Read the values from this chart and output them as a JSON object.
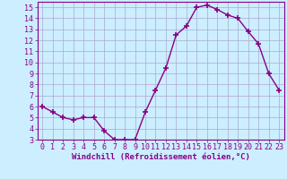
{
  "x": [
    0,
    1,
    2,
    3,
    4,
    5,
    6,
    7,
    8,
    9,
    10,
    11,
    12,
    13,
    14,
    15,
    16,
    17,
    18,
    19,
    20,
    21,
    22,
    23
  ],
  "y": [
    6.0,
    5.5,
    5.0,
    4.8,
    5.0,
    5.0,
    3.8,
    3.0,
    3.0,
    3.0,
    5.5,
    7.5,
    9.5,
    12.5,
    13.3,
    15.0,
    15.2,
    14.8,
    14.3,
    14.0,
    12.8,
    11.7,
    9.0,
    7.5
  ],
  "line_color": "#880088",
  "marker": "+",
  "marker_size": 4,
  "marker_linewidth": 1.2,
  "background_color": "#cceeff",
  "grid_color": "#aaaacc",
  "xlabel": "Windchill (Refroidissement éolien,°C)",
  "xlim": [
    -0.5,
    23.5
  ],
  "ylim": [
    3,
    15.5
  ],
  "yticks": [
    3,
    4,
    5,
    6,
    7,
    8,
    9,
    10,
    11,
    12,
    13,
    14,
    15
  ],
  "xticks": [
    0,
    1,
    2,
    3,
    4,
    5,
    6,
    7,
    8,
    9,
    10,
    11,
    12,
    13,
    14,
    15,
    16,
    17,
    18,
    19,
    20,
    21,
    22,
    23
  ],
  "tick_color": "#880088",
  "label_color": "#880088",
  "label_fontsize": 6.5,
  "tick_fontsize": 6.0,
  "linewidth": 1.0
}
